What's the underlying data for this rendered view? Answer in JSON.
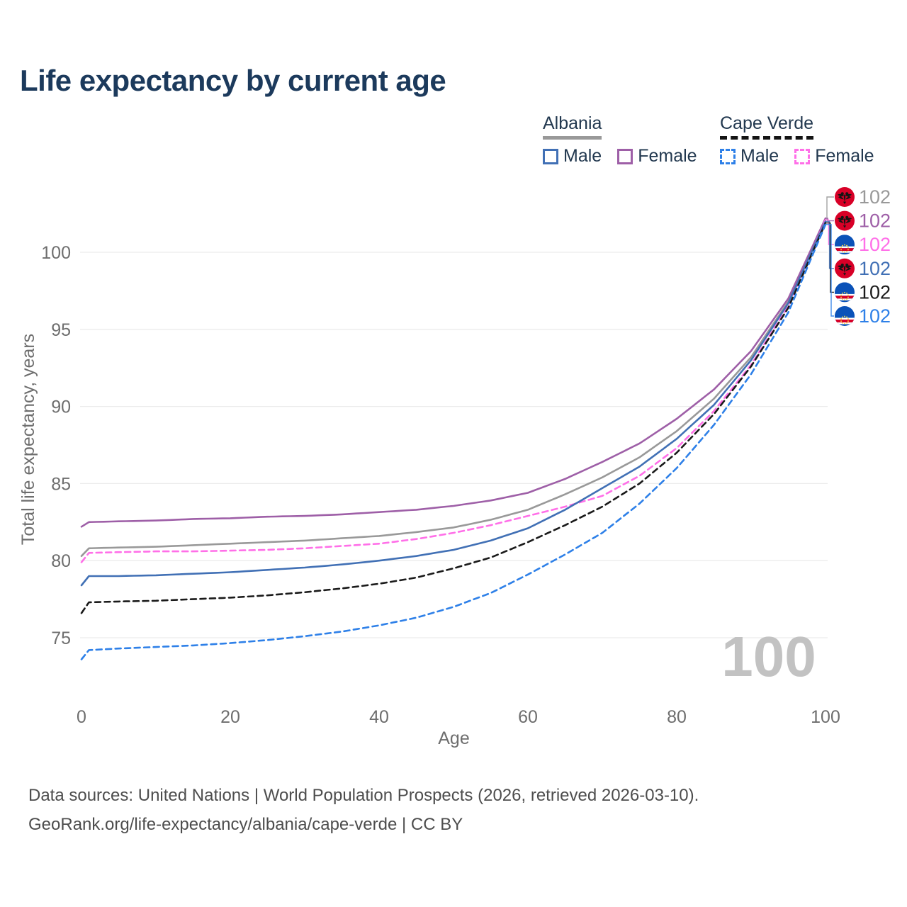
{
  "page": {
    "title": "Life expectancy by current age",
    "footer": {
      "line1": "Data sources: United Nations | World Population Prospects (2026, retrieved 2026-03-10).",
      "line2": "GeoRank.org/life-expectancy/albania/cape-verde | CC BY"
    }
  },
  "legend": {
    "groups": [
      {
        "label": "Albania",
        "style": "solid",
        "underline_color": "#999999",
        "items": [
          {
            "label": "Male",
            "color": "#4170b5",
            "dashed": false
          },
          {
            "label": "Female",
            "color": "#9e5fa7",
            "dashed": false
          }
        ]
      },
      {
        "label": "Cape Verde",
        "style": "dashed",
        "underline_color": "#141414",
        "items": [
          {
            "label": "Male",
            "color": "#2e80e8",
            "dashed": true
          },
          {
            "label": "Female",
            "color": "#ff6fe8",
            "dashed": true
          }
        ]
      }
    ]
  },
  "watermark": {
    "label": "100"
  },
  "chart_data": {
    "type": "line",
    "title": "Life expectancy by current age",
    "xlabel": "Age",
    "ylabel": "Total life expectancy, years",
    "xlim": [
      0,
      100
    ],
    "ylim_display": [
      73,
      103
    ],
    "x_ticks": [
      0,
      20,
      40,
      60,
      80,
      100
    ],
    "y_ticks": [
      75,
      80,
      85,
      90,
      95,
      100
    ],
    "grid": "horizontal-only",
    "legend_position": "top-right",
    "ages": [
      0,
      1,
      5,
      10,
      15,
      20,
      25,
      30,
      35,
      40,
      45,
      50,
      55,
      60,
      65,
      70,
      75,
      80,
      85,
      90,
      95,
      100
    ],
    "series": [
      {
        "name": "Albania",
        "group": "Albania",
        "scope": "country-total",
        "color": "#999999",
        "dashed": false,
        "flag": "albania",
        "end_label": "102",
        "values": [
          80.3,
          80.8,
          80.85,
          80.9,
          81.0,
          81.1,
          81.2,
          81.3,
          81.45,
          81.6,
          81.85,
          82.15,
          82.65,
          83.3,
          84.3,
          85.4,
          86.7,
          88.4,
          90.5,
          93.2,
          96.8,
          102.1
        ]
      },
      {
        "name": "Albania Female",
        "group": "Albania",
        "scope": "female",
        "color": "#9e5fa7",
        "dashed": false,
        "flag": "albania",
        "end_label": "102",
        "values": [
          82.2,
          82.5,
          82.55,
          82.6,
          82.7,
          82.75,
          82.85,
          82.9,
          83.0,
          83.15,
          83.3,
          83.55,
          83.9,
          84.4,
          85.3,
          86.4,
          87.6,
          89.2,
          91.1,
          93.6,
          97.0,
          102.2
        ]
      },
      {
        "name": "Cape Verde Female",
        "group": "Cape Verde",
        "scope": "female",
        "color": "#ff6fe8",
        "dashed": true,
        "flag": "cape-verde",
        "end_label": "102",
        "values": [
          79.9,
          80.5,
          80.55,
          80.6,
          80.6,
          80.65,
          80.7,
          80.8,
          80.95,
          81.1,
          81.4,
          81.8,
          82.3,
          82.9,
          83.5,
          84.2,
          85.5,
          87.3,
          89.7,
          92.7,
          96.5,
          102.1
        ]
      },
      {
        "name": "Albania Male",
        "group": "Albania",
        "scope": "male",
        "color": "#4170b5",
        "dashed": false,
        "flag": "albania",
        "end_label": "102",
        "values": [
          78.4,
          79.0,
          79.0,
          79.05,
          79.15,
          79.25,
          79.4,
          79.55,
          79.75,
          80.0,
          80.3,
          80.7,
          81.3,
          82.1,
          83.3,
          84.7,
          86.1,
          87.9,
          90.1,
          93.0,
          96.7,
          102.0
        ]
      },
      {
        "name": "Cape Verde",
        "group": "Cape Verde",
        "scope": "country-total",
        "color": "#1a1a1a",
        "dashed": true,
        "flag": "cape-verde",
        "end_label": "102",
        "values": [
          76.6,
          77.3,
          77.35,
          77.4,
          77.5,
          77.6,
          77.75,
          77.95,
          78.2,
          78.5,
          78.9,
          79.5,
          80.2,
          81.2,
          82.3,
          83.5,
          85.0,
          87.0,
          89.5,
          92.6,
          96.4,
          101.9
        ]
      },
      {
        "name": "Cape Verde Male",
        "group": "Cape Verde",
        "scope": "male",
        "color": "#2e80e8",
        "dashed": true,
        "flag": "cape-verde",
        "end_label": "102",
        "values": [
          73.6,
          74.2,
          74.3,
          74.4,
          74.5,
          74.65,
          74.85,
          75.1,
          75.4,
          75.8,
          76.3,
          77.0,
          77.9,
          79.1,
          80.4,
          81.8,
          83.7,
          86.0,
          88.8,
          92.1,
          96.1,
          101.8
        ]
      }
    ]
  }
}
